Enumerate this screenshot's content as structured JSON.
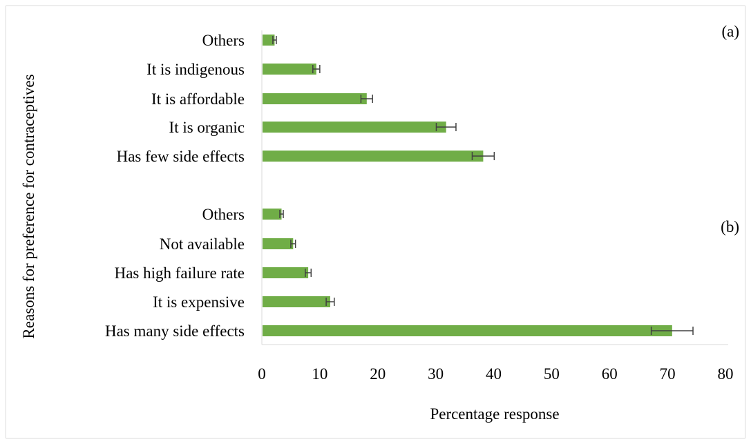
{
  "chart_data": {
    "type": "bar",
    "orientation": "horizontal",
    "ylabel": "Reasons for preference for contraceptives",
    "xlabel": "Percentage response",
    "xlim": [
      0,
      80
    ],
    "x_ticks": [
      "0",
      "10",
      "20",
      "30",
      "40",
      "50",
      "60",
      "70",
      "80"
    ],
    "bar_color": "#70ad47",
    "error_bar_color": "#404040",
    "grid": false,
    "panels": [
      {
        "label": "(a)",
        "categories": [
          "Others",
          "It is indigenous",
          "It is affordable",
          "It is organic",
          "Has few side effects"
        ],
        "values": [
          2.2,
          9.4,
          18.1,
          31.8,
          38.2
        ],
        "errors": [
          0.3,
          0.6,
          1.0,
          1.7,
          1.9
        ]
      },
      {
        "label": "(b)",
        "categories": [
          "Others",
          "Not available",
          "Has high failure rate",
          "It is expensive",
          "Has many side effects"
        ],
        "values": [
          3.4,
          5.4,
          8.0,
          11.8,
          70.8
        ],
        "errors": [
          0.3,
          0.4,
          0.5,
          0.7,
          3.6
        ]
      }
    ]
  }
}
